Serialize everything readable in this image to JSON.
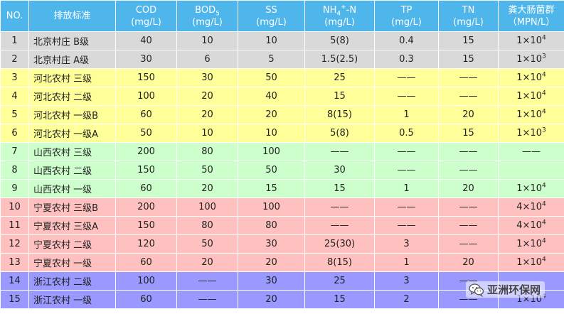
{
  "table": {
    "header": {
      "no": "NO.",
      "name": "排放标准",
      "cod": {
        "main": "COD",
        "unit": "(mg/L)"
      },
      "bod": {
        "main": "BOD",
        "sub": "5",
        "unit": "(mg/L)"
      },
      "ss": {
        "main": "SS",
        "unit": "(mg/L)"
      },
      "nh4": {
        "pre": "NH",
        "sub": "4",
        "sup": "+",
        "post": "-N",
        "unit": "(mg/L)"
      },
      "tp": {
        "main": "TP",
        "unit": "(mg/L)"
      },
      "tn": {
        "main": "TN",
        "unit": "(mg/L)"
      },
      "fc": {
        "main": "粪大肠菌群",
        "unit": "（MPN/L）"
      }
    },
    "rows": [
      {
        "no": "1",
        "name": "北京村庄 B级",
        "cod": "40",
        "bod": "10",
        "ss": "10",
        "nh4": "5(8)",
        "tp": "0.4",
        "tn": "15",
        "fc_base": "1×10",
        "fc_exp": "4",
        "group": "beijing"
      },
      {
        "no": "2",
        "name": "北京村庄 A级",
        "cod": "30",
        "bod": "6",
        "ss": "5",
        "nh4": "1.5(2.5)",
        "tp": "0.3",
        "tn": "15",
        "fc_base": "1×10",
        "fc_exp": "3",
        "group": "beijing"
      },
      {
        "no": "3",
        "name": "河北农村 三级",
        "cod": "150",
        "bod": "30",
        "ss": "50",
        "nh4": "25",
        "tp": "——",
        "tn": "——",
        "fc_base": "1×10",
        "fc_exp": "4",
        "group": "hebei"
      },
      {
        "no": "4",
        "name": "河北农村 二级",
        "cod": "100",
        "bod": "20",
        "ss": "40",
        "nh4": "15",
        "tp": "——",
        "tn": "——",
        "fc_base": "1×10",
        "fc_exp": "4",
        "group": "hebei"
      },
      {
        "no": "5",
        "name": "河北农村 一级B",
        "cod": "60",
        "bod": "20",
        "ss": "20",
        "nh4": "8(15)",
        "tp": "1",
        "tn": "20",
        "fc_base": "1×10",
        "fc_exp": "4",
        "group": "hebei"
      },
      {
        "no": "6",
        "name": "河北农村 一级A",
        "cod": "50",
        "bod": "10",
        "ss": "10",
        "nh4": "5(8)",
        "tp": "0.5",
        "tn": "15",
        "fc_base": "1×10",
        "fc_exp": "3",
        "group": "hebei"
      },
      {
        "no": "7",
        "name": "山西农村 三级",
        "cod": "200",
        "bod": "80",
        "ss": "100",
        "nh4": "——",
        "tp": "——",
        "tn": "——",
        "fc_base": "——",
        "fc_exp": "",
        "group": "shanxi"
      },
      {
        "no": "8",
        "name": "山西农村 二级",
        "cod": "150",
        "bod": "50",
        "ss": "50",
        "nh4": "30",
        "tp": "——",
        "tn": "——",
        "fc_base": "",
        "fc_exp": "",
        "group": "shanxi"
      },
      {
        "no": "9",
        "name": "山西农村 一级",
        "cod": "60",
        "bod": "20",
        "ss": "15",
        "nh4": "15",
        "tp": "1",
        "tn": "20",
        "fc_base": "1×10",
        "fc_exp": "4",
        "group": "shanxi"
      },
      {
        "no": "10",
        "name": "宁夏农村 三级B",
        "cod": "200",
        "bod": "100",
        "ss": "100",
        "nh4": "——",
        "tp": "——",
        "tn": "——",
        "fc_base": "4×10",
        "fc_exp": "4",
        "group": "ningxia"
      },
      {
        "no": "11",
        "name": "宁夏农村 三级A",
        "cod": "150",
        "bod": "80",
        "ss": "80",
        "nh4": "——",
        "tp": "——",
        "tn": "——",
        "fc_base": "4×10",
        "fc_exp": "4",
        "group": "ningxia"
      },
      {
        "no": "12",
        "name": "宁夏农村 二级",
        "cod": "120",
        "bod": "50",
        "ss": "30",
        "nh4": "25(30)",
        "tp": "3",
        "tn": "——",
        "fc_base": "1×10",
        "fc_exp": "4",
        "group": "ningxia"
      },
      {
        "no": "13",
        "name": "宁夏农村 一级",
        "cod": "60",
        "bod": "20",
        "ss": "20",
        "nh4": "8(15)",
        "tp": "1",
        "tn": "20",
        "fc_base": "1×10",
        "fc_exp": "4",
        "group": "ningxia"
      },
      {
        "no": "14",
        "name": "浙江农村 二级",
        "cod": "100",
        "bod": "——",
        "ss": "30",
        "nh4": "25",
        "tp": "3",
        "tn": "——",
        "fc_base": "",
        "fc_exp": "",
        "group": "zhejiang"
      },
      {
        "no": "15",
        "name": "浙江农村 一级",
        "cod": "60",
        "bod": "——",
        "ss": "20",
        "nh4": "15",
        "tp": "2",
        "tn": "——",
        "fc_base": "1×10",
        "fc_exp": "4",
        "group": "zhejiang"
      }
    ]
  },
  "watermark": {
    "text": "亚洲环保网",
    "icon": "wechat-icon"
  }
}
